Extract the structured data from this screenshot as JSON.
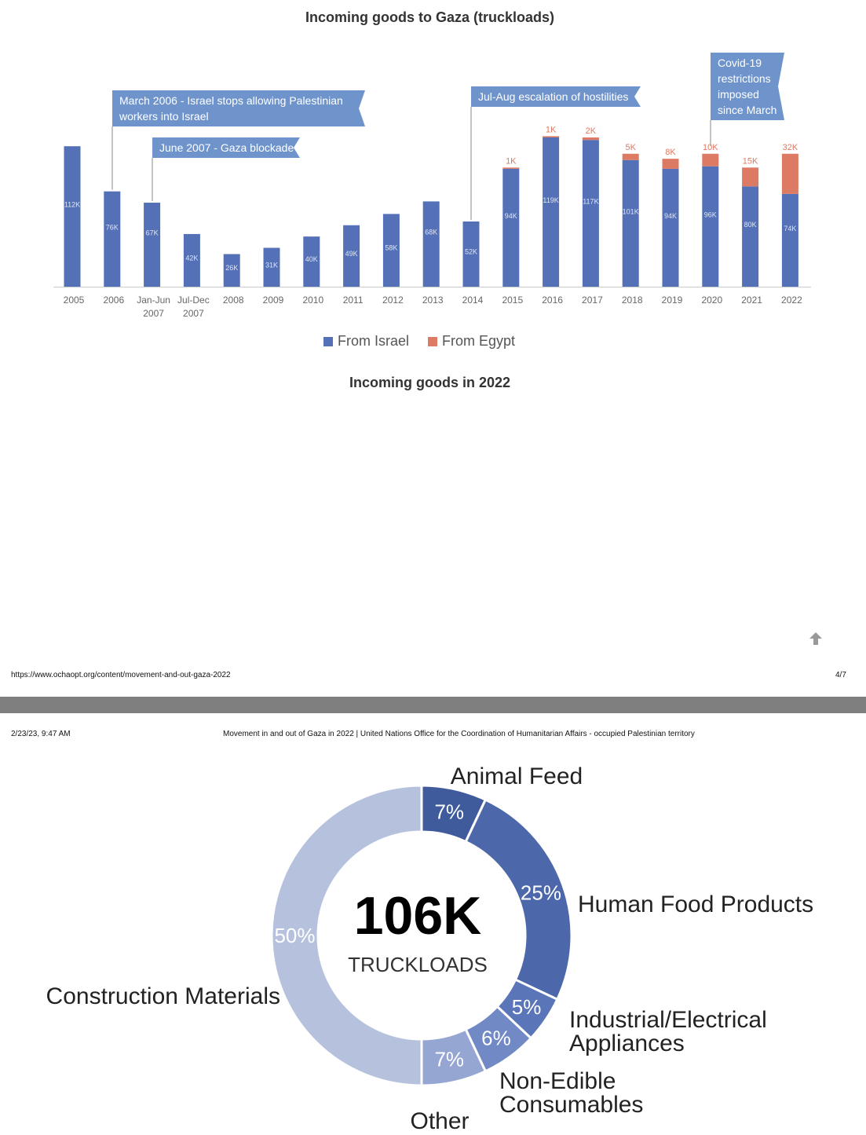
{
  "page": {
    "footer_url": "https://www.ochaopt.org/content/movement-and-out-gaza-2022",
    "footer_page": "4/7",
    "header_date": "2/23/23, 9:47 AM",
    "header_title": "Movement in and out of Gaza in 2022 | United Nations Office for the Coordination of Humanitarian Affairs - occupied Palestinian territory",
    "scroll_top_icon": "arrow-up-icon"
  },
  "colors": {
    "israel": "#5470b6",
    "egypt": "#dd7a63",
    "annotation": "#6f94cc"
  },
  "chart_data": [
    {
      "type": "bar",
      "stacked": true,
      "title": "Incoming goods to Gaza (truckloads)",
      "categories": [
        "2005",
        "2006",
        "Jan-Jun\n2007",
        "Jul-Dec\n2007",
        "2008",
        "2009",
        "2010",
        "2011",
        "2012",
        "2013",
        "2014",
        "2015",
        "2016",
        "2017",
        "2018",
        "2019",
        "2020",
        "2021",
        "2022"
      ],
      "series": [
        {
          "name": "From Israel",
          "values": [
            112000,
            76000,
            67000,
            42000,
            26000,
            31000,
            40000,
            49000,
            58000,
            68000,
            52000,
            94000,
            119000,
            117000,
            101000,
            94000,
            96000,
            80000,
            74000
          ],
          "labels": [
            "112K",
            "76K",
            "67K",
            "42K",
            "26K",
            "31K",
            "40K",
            "49K",
            "58K",
            "68K",
            "52K",
            "94K",
            "119K",
            "117K",
            "101K",
            "94K",
            "96K",
            "80K",
            "74K"
          ]
        },
        {
          "name": "From Egypt",
          "values": [
            0,
            0,
            0,
            0,
            0,
            0,
            0,
            0,
            0,
            0,
            0,
            1000,
            1000,
            2000,
            5000,
            8000,
            10000,
            15000,
            32000
          ],
          "labels": [
            "",
            "",
            "",
            "",
            "",
            "",
            "",
            "",
            "",
            "",
            "",
            "1K",
            "1K",
            "2K",
            "5K",
            "8K",
            "10K",
            "15K",
            "32K"
          ]
        }
      ],
      "annotations": [
        {
          "text": "March 2006 - Israel stops allowing Palestinian workers into Israel",
          "category": "2006"
        },
        {
          "text": "June 2007 - Gaza blockade",
          "category": "Jan-Jun 2007"
        },
        {
          "text": "Jul-Aug escalation of hostilities",
          "category": "2014"
        },
        {
          "text": "Covid-19 restrictions imposed since March",
          "category": "2020"
        }
      ],
      "legend": "bottom"
    },
    {
      "type": "pie",
      "donut": true,
      "title": "Incoming goods in 2022",
      "center_value": "106K",
      "center_label": "TRUCKLOADS",
      "slices": [
        {
          "label": "Animal Feed",
          "value": 7,
          "pct_label": "7%",
          "color": "#3f5b9c"
        },
        {
          "label": "Human Food Products",
          "value": 25,
          "pct_label": "25%",
          "color": "#4c68ab"
        },
        {
          "label": "Industrial/Electrical Appliances",
          "value": 5,
          "pct_label": "5%",
          "color": "#5a76b8"
        },
        {
          "label": "Non-Edible Consumables",
          "value": 6,
          "pct_label": "6%",
          "color": "#7189c4"
        },
        {
          "label": "Other",
          "value": 7,
          "pct_label": "7%",
          "color": "#95a6d2"
        },
        {
          "label": "Construction Materials",
          "value": 50,
          "pct_label": "50%",
          "color": "#b6c2dd"
        }
      ]
    }
  ]
}
